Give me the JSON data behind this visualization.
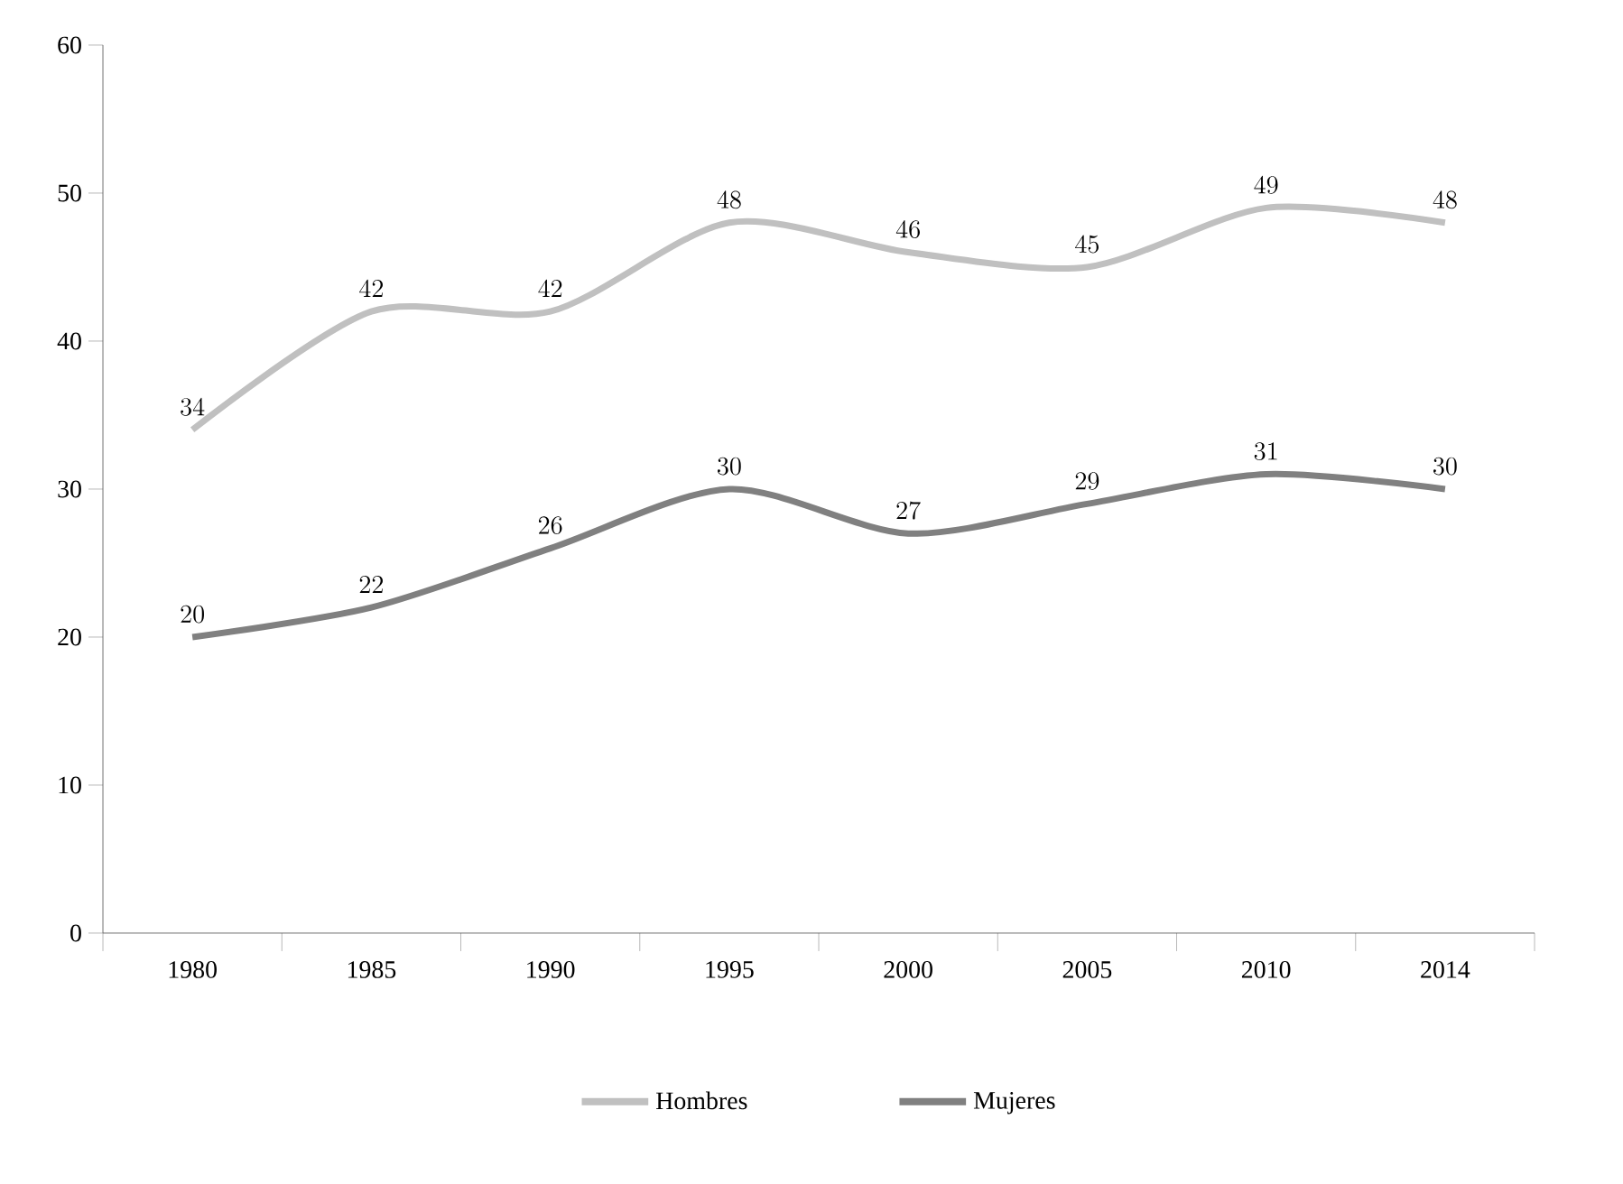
{
  "chart_data": {
    "type": "line",
    "categories": [
      "1980",
      "1985",
      "1990",
      "1995",
      "2000",
      "2005",
      "2010",
      "2014"
    ],
    "series": [
      {
        "name": "Hombres",
        "color": "#c0c0c0",
        "values": [
          34,
          42,
          42,
          48,
          46,
          45,
          49,
          48
        ]
      },
      {
        "name": "Mujeres",
        "color": "#808080",
        "values": [
          20,
          22,
          26,
          30,
          27,
          29,
          31,
          30
        ]
      }
    ],
    "ylim": [
      0,
      60
    ],
    "yticks": [
      0,
      10,
      20,
      30,
      40,
      50,
      60
    ],
    "data_labels": true,
    "legend": "bottom",
    "marker": "none",
    "line_style": "solid"
  }
}
